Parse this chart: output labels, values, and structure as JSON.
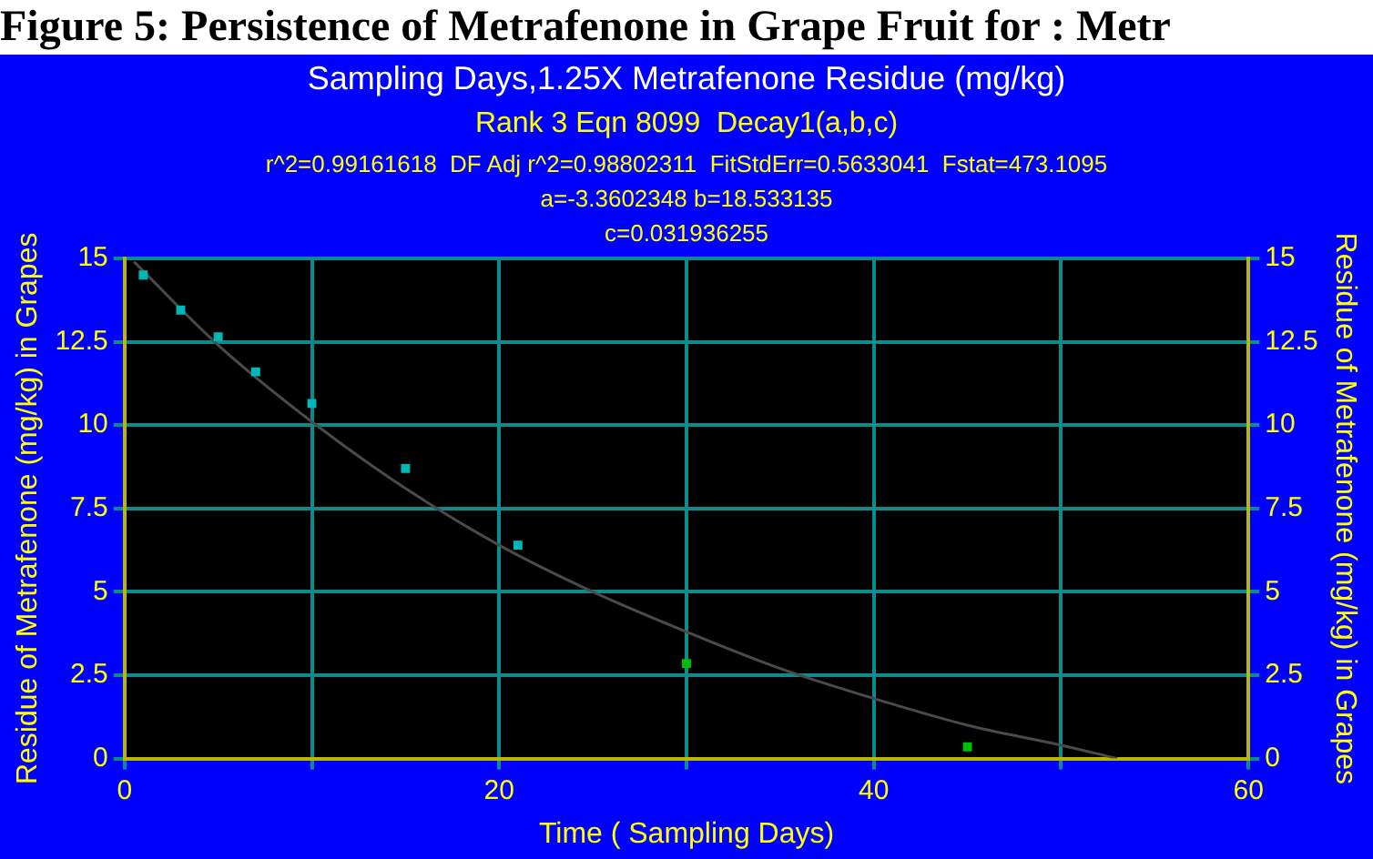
{
  "chart_data": {
    "type": "scatter",
    "title": "Figure 5: Persistence of Metrafenone in Grape Fruit for : Metr",
    "subtitle": "Sampling Days,1.25X Metrafenone Residue (mg/kg)",
    "annotations": [
      "Rank 3 Eqn 8099  Decay1(a,b,c)",
      "r^2=0.99161618  DF Adj r^2=0.98802311  FitStdErr=0.5633041  Fstat=473.1095",
      "a=-3.3602348 b=18.533135",
      "c=0.031936255"
    ],
    "xlabel": "Time ( Sampling Days)",
    "ylabel": "Residue of Metrafenone (mg/kg) in Grapes",
    "y2label": "Residue of Metrafenone (mg/kg) in Grapes",
    "xlim": [
      0,
      60
    ],
    "xticks": [
      0,
      {
        "value": 10,
        "label": null
      },
      20,
      {
        "value": 30,
        "label": null
      },
      40,
      {
        "value": 50,
        "label": null
      },
      60
    ],
    "ylim": [
      0,
      15
    ],
    "yticks": [
      0,
      2.5,
      5,
      7.5,
      10,
      12.5,
      15
    ],
    "y2lim": [
      0,
      15
    ],
    "y2ticks": [
      0,
      2.5,
      5,
      7.5,
      10,
      12.5,
      15
    ],
    "grid": true,
    "legend": false,
    "series": [
      {
        "type": "line",
        "color": "#4a4a4a",
        "marker": "none",
        "line_style": "solid",
        "x": [
          0.5,
          5,
          10,
          15,
          20,
          25,
          30,
          35,
          40,
          45,
          50,
          53
        ],
        "values": [
          14.9,
          12.4,
          10.1,
          8.1,
          6.4,
          5.0,
          3.8,
          2.7,
          1.8,
          1.0,
          0.4,
          0
        ]
      },
      {
        "type": "scatter",
        "marker": "square",
        "colors": [
          "#00b8b8",
          "#00b8b8",
          "#00b8b8",
          "#00b8b8",
          "#00b8b8",
          "#00b8b8",
          "#00b8b8",
          "#00c000",
          "#00c000"
        ],
        "x": [
          1,
          3,
          5,
          7,
          10,
          15,
          21,
          30,
          45
        ],
        "values": [
          14.5,
          13.45,
          12.65,
          11.6,
          10.65,
          8.7,
          6.4,
          2.85,
          0.35
        ]
      }
    ]
  }
}
